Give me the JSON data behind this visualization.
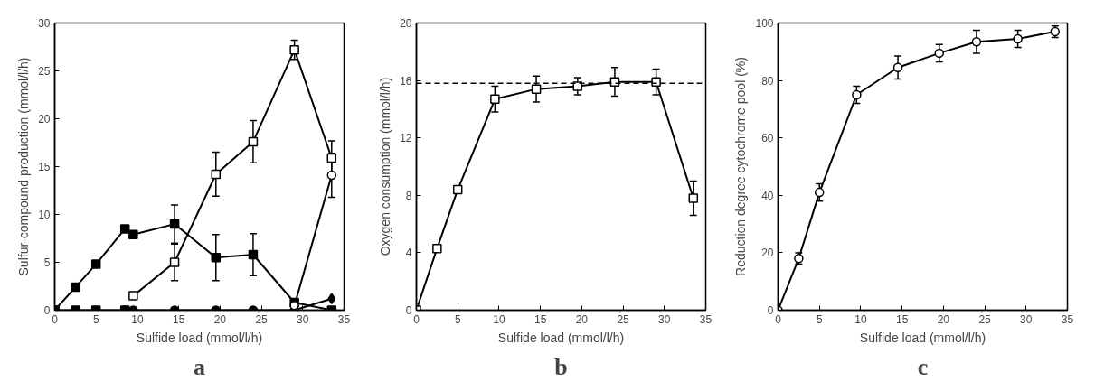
{
  "chart_data": [
    {
      "type": "line",
      "title": "a",
      "xlabel": "Sulfide load (mmol/l/h)",
      "ylabel": "Sulfur-compound production (mmol/l/h)",
      "xlim": [
        0,
        35
      ],
      "ylim": [
        0,
        30
      ],
      "xticks": [
        0,
        5,
        10,
        15,
        20,
        25,
        30,
        35
      ],
      "yticks": [
        0,
        5,
        10,
        15,
        20,
        25,
        30
      ],
      "grid": false,
      "line_style": "solid",
      "series": [
        {
          "color": "#000000",
          "marker": "square",
          "x": [
            0,
            2.5,
            5,
            8.5,
            9.5,
            14.5,
            19.5,
            24,
            29,
            33.5
          ],
          "values": [
            0,
            2.4,
            4.8,
            8.5,
            7.9,
            9,
            5.5,
            5.8,
            0.8,
            0
          ],
          "errors": [
            null,
            null,
            null,
            null,
            null,
            2,
            2.4,
            2.2,
            null,
            null
          ]
        },
        {
          "color": "#000000",
          "colors": [
            "#ffffff",
            "#ffffff",
            "#ffffff",
            "#ffffff",
            "#ffffff",
            "#ffffff"
          ],
          "marker": "square",
          "x": [
            9.5,
            14.5,
            19.5,
            24,
            29,
            33.5
          ],
          "values": [
            1.5,
            5,
            14.2,
            17.6,
            27.2,
            15.9
          ],
          "errors": [
            null,
            1.9,
            2.3,
            2.2,
            1,
            1.8
          ]
        },
        {
          "color": "#000000",
          "marker": "square",
          "x": [
            0,
            2.5,
            5,
            8.5
          ],
          "values": [
            0,
            0,
            0,
            0
          ]
        },
        {
          "color": "#000000",
          "marker": "circle",
          "x": [
            8.5,
            9.5,
            14.5,
            19.5,
            24,
            29
          ],
          "values": [
            0,
            0,
            0,
            0,
            0,
            0
          ]
        },
        {
          "color": "#000000",
          "marker": "diamond",
          "x": [
            29,
            33.5
          ],
          "values": [
            0,
            1.2
          ]
        },
        {
          "color": "#000000",
          "colors": [
            "#ffffff",
            "#ffffff"
          ],
          "marker": "circle",
          "x": [
            29,
            33.5
          ],
          "values": [
            0.5,
            14.1
          ],
          "errors": [
            null,
            2.3
          ]
        }
      ]
    },
    {
      "type": "line",
      "title": "b",
      "xlabel": "Sulfide load (mmol/l/h)",
      "ylabel": "Oxygen consumption (mmol/l/h)",
      "xlim": [
        0,
        35
      ],
      "ylim": [
        0,
        20
      ],
      "xticks": [
        0,
        5,
        10,
        15,
        20,
        25,
        30,
        35
      ],
      "yticks": [
        0,
        4,
        8,
        12,
        16,
        20
      ],
      "grid": false,
      "line_style": "solid",
      "ref_lines": [
        {
          "axis": "y",
          "value": 15.8,
          "label": null,
          "line_style": "dashed",
          "color": "#000000"
        }
      ],
      "series": [
        {
          "color": "#000000",
          "colors": [
            "#ffffff",
            "#ffffff",
            "#ffffff",
            "#ffffff",
            "#ffffff",
            "#ffffff",
            "#ffffff",
            "#ffffff",
            "#ffffff"
          ],
          "marker": "square",
          "x": [
            0,
            2.5,
            5,
            9.5,
            14.5,
            19.5,
            24,
            29,
            33.5
          ],
          "values": [
            0,
            4.3,
            8.4,
            14.7,
            15.4,
            15.6,
            15.9,
            15.9,
            7.8
          ],
          "errors": [
            null,
            null,
            null,
            0.9,
            0.9,
            0.6,
            1,
            0.9,
            1.2
          ]
        }
      ]
    },
    {
      "type": "line",
      "title": "c",
      "xlabel": "Sulfide load (mmol/l/h)",
      "ylabel": "Reduction degree cytochrome pool (%)",
      "xlim": [
        0,
        35
      ],
      "ylim": [
        0,
        100
      ],
      "xticks": [
        0,
        5,
        10,
        15,
        20,
        25,
        30,
        35
      ],
      "yticks": [
        0,
        20,
        40,
        60,
        80,
        100
      ],
      "grid": false,
      "line_style": "solid",
      "series": [
        {
          "color": "#000000",
          "colors": [
            "#ffffff",
            "#ffffff",
            "#ffffff",
            "#ffffff",
            "#ffffff",
            "#ffffff",
            "#ffffff",
            "#ffffff",
            "#ffffff"
          ],
          "marker": "circle",
          "x": [
            0,
            2.5,
            5,
            9.5,
            14.5,
            19.5,
            24,
            29,
            33.5
          ],
          "values": [
            0,
            18,
            41,
            75,
            84.5,
            89.5,
            93.5,
            94.5,
            97
          ],
          "errors": [
            null,
            2,
            3,
            3,
            4,
            3,
            4,
            3,
            2
          ]
        }
      ]
    }
  ]
}
